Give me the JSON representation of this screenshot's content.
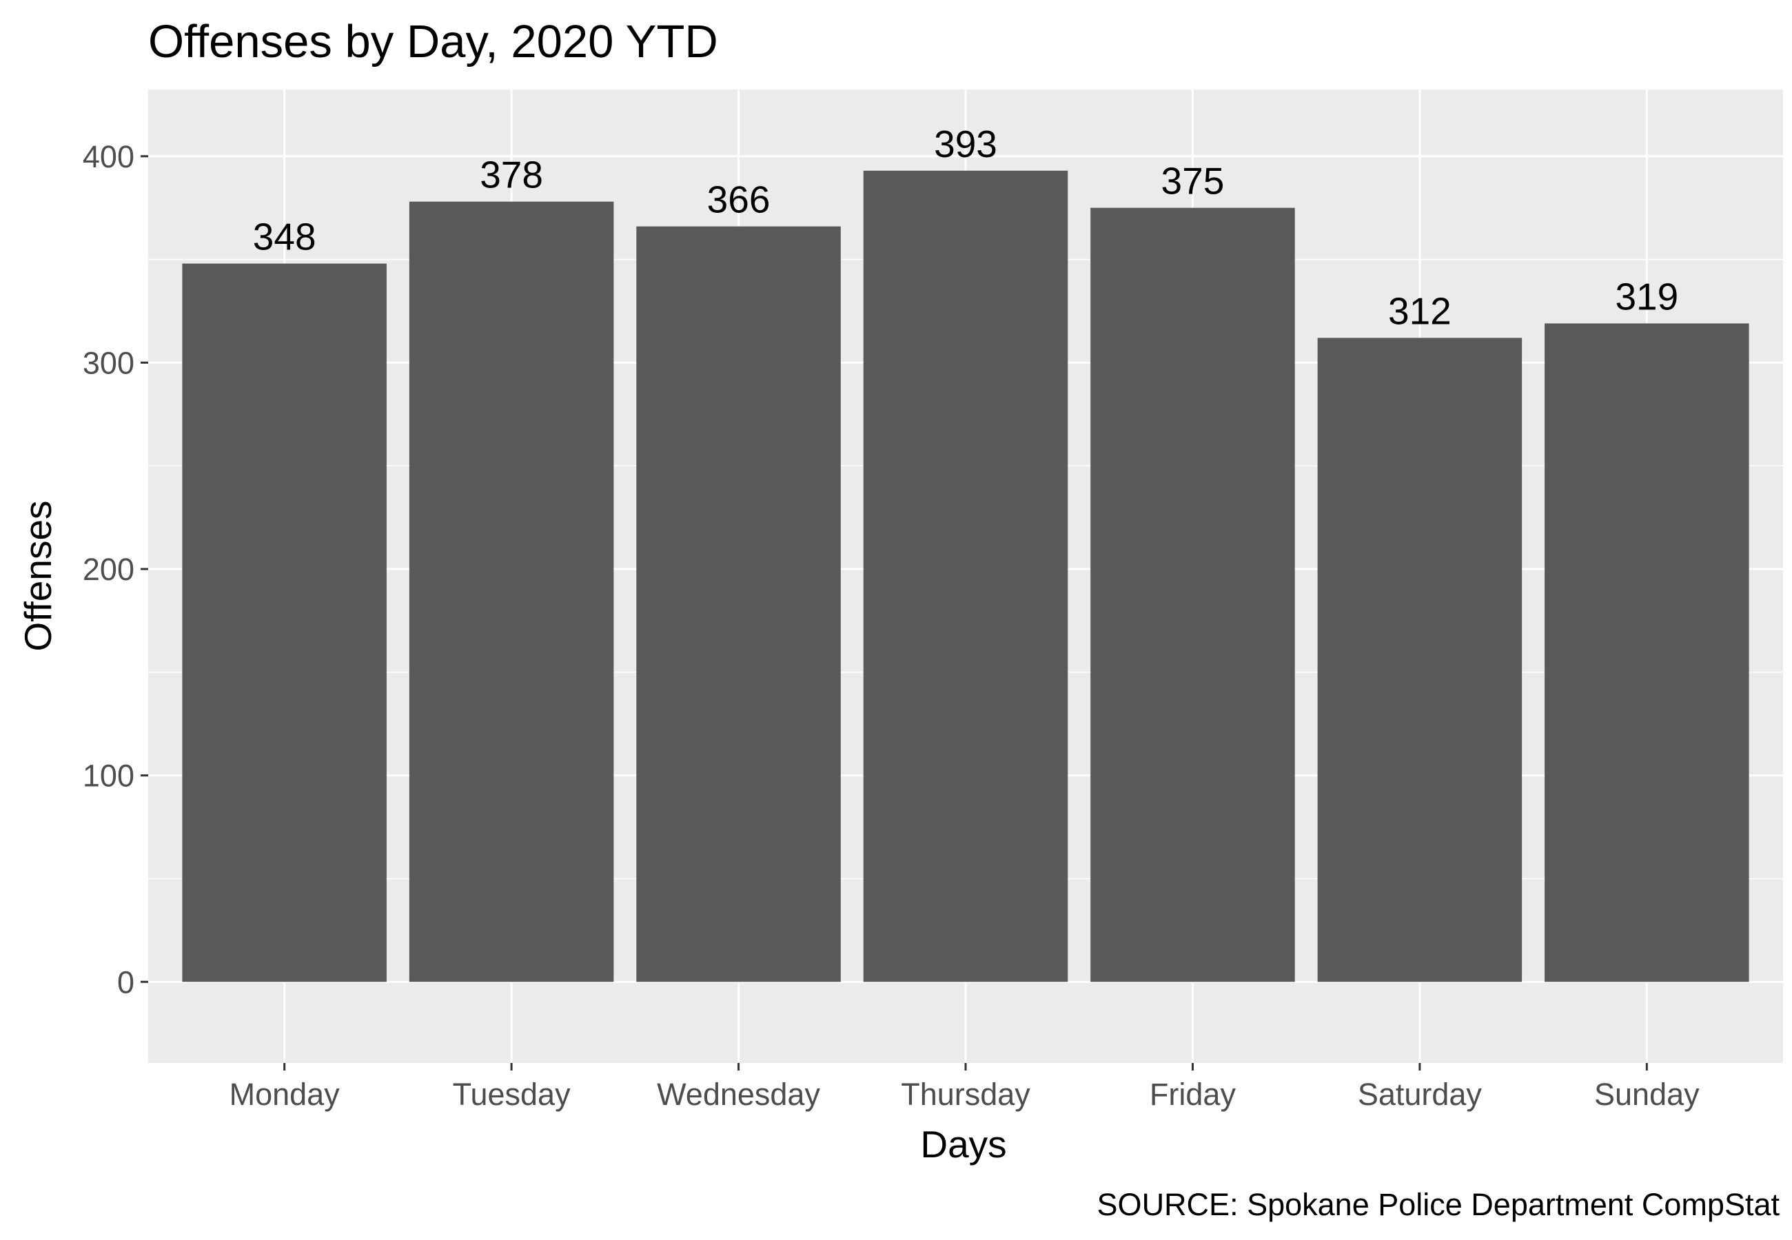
{
  "chart_data": {
    "type": "bar",
    "title": "Offenses by Day, 2020 YTD",
    "xlabel": "Days",
    "ylabel": "Offenses",
    "caption": "SOURCE: Spokane Police Department CompStat",
    "categories": [
      "Monday",
      "Tuesday",
      "Wednesday",
      "Thursday",
      "Friday",
      "Saturday",
      "Sunday"
    ],
    "values": [
      348,
      378,
      366,
      393,
      375,
      312,
      319
    ],
    "data_labels": [
      "348",
      "378",
      "366",
      "393",
      "375",
      "312",
      "319"
    ],
    "ylim": [
      -39.3,
      432.3
    ],
    "y_ticks": [
      0,
      100,
      200,
      300,
      400
    ],
    "y_tick_labels": [
      "0",
      "100",
      "200",
      "300",
      "400"
    ],
    "grid": true,
    "legend": "none",
    "colors": {
      "bar": "#595959",
      "panel_background": "#ebebeb",
      "grid": "#ffffff",
      "tick_text": "#4d4d4d"
    }
  }
}
